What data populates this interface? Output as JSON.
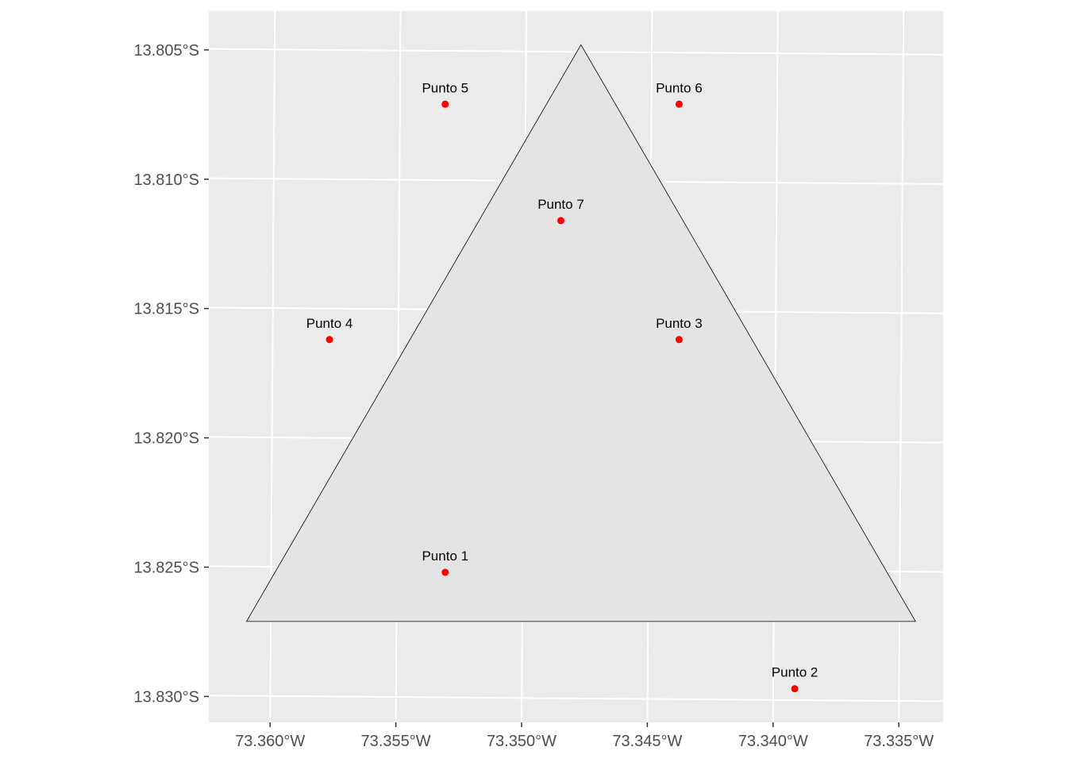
{
  "map": {
    "crs_units": "degrees",
    "panel_background": "#ebebeb",
    "grid_color": "#ffffff",
    "xlim": [
      -73.3625,
      -73.3333
    ],
    "ylim": [
      -13.831,
      -13.8035
    ],
    "x_ticks": [
      {
        "value": -73.36,
        "label": "73.360°W"
      },
      {
        "value": -73.355,
        "label": "73.355°W"
      },
      {
        "value": -73.35,
        "label": "73.350°W"
      },
      {
        "value": -73.345,
        "label": "73.345°W"
      },
      {
        "value": -73.34,
        "label": "73.340°W"
      },
      {
        "value": -73.335,
        "label": "73.335°W"
      }
    ],
    "y_ticks": [
      {
        "value": -13.805,
        "label": "13.805°S"
      },
      {
        "value": -13.81,
        "label": "13.810°S"
      },
      {
        "value": -13.815,
        "label": "13.815°S"
      },
      {
        "value": -13.82,
        "label": "13.820°S"
      },
      {
        "value": -13.825,
        "label": "13.825°S"
      },
      {
        "value": -13.83,
        "label": "13.830°S"
      }
    ],
    "polygon": {
      "fill": "#e4e4e4",
      "stroke": "#000000",
      "vertices": [
        [
          -73.361,
          -13.8271
        ],
        [
          -73.3477,
          -13.8048
        ],
        [
          -73.3344,
          -13.8271
        ]
      ]
    },
    "point_color": "#ff0000",
    "points": [
      {
        "label": "Punto 1",
        "lon": -73.3531,
        "lat": -13.8252
      },
      {
        "label": "Punto 2",
        "lon": -73.3392,
        "lat": -13.8297
      },
      {
        "label": "Punto 3",
        "lon": -73.3438,
        "lat": -13.8162
      },
      {
        "label": "Punto 4",
        "lon": -73.3577,
        "lat": -13.8162
      },
      {
        "label": "Punto 5",
        "lon": -73.3531,
        "lat": -13.8071
      },
      {
        "label": "Punto 6",
        "lon": -73.3438,
        "lat": -13.8071
      },
      {
        "label": "Punto 7",
        "lon": -73.3485,
        "lat": -13.8116
      }
    ]
  }
}
